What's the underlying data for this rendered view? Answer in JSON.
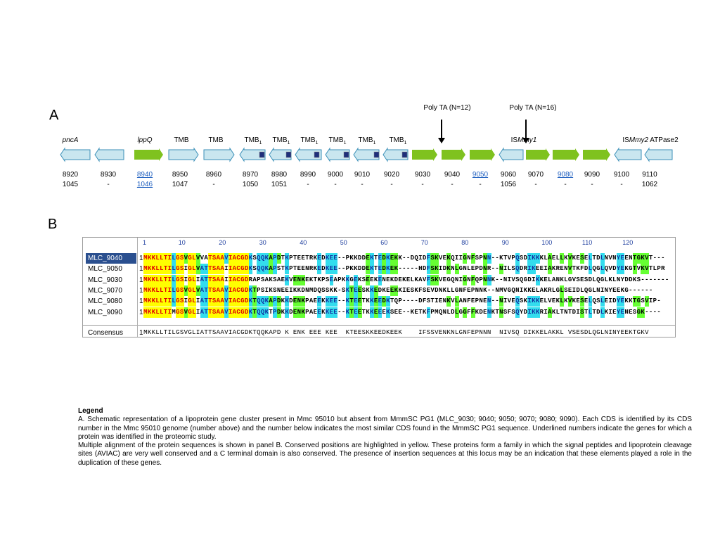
{
  "panels": {
    "a": "A",
    "b": "B"
  },
  "poly_labels": [
    "Poly TA (N=12)",
    "Poly TA (N=16)"
  ],
  "gene_labels": [
    {
      "pre": "",
      "it": "pncA",
      "post": ""
    },
    {
      "pre": "",
      "it": "lppQ",
      "post": ""
    },
    {
      "pre": "TMB",
      "it": "",
      "post": ""
    },
    {
      "pre": "TMB",
      "it": "",
      "post": ""
    },
    {
      "pre": "TMB",
      "sub": "1"
    },
    {
      "pre": "TMB",
      "sub": "1"
    },
    {
      "pre": "TMB",
      "sub": "1"
    },
    {
      "pre": "TMB",
      "sub": "1"
    },
    {
      "pre": "TMB",
      "sub": "1"
    },
    {
      "pre": "TMB",
      "sub": "1"
    },
    {
      "pre": "IS",
      "it": "Mmy1",
      "post": ""
    },
    {
      "pre": "IS",
      "it": "Mmy2",
      "post": " ATPase2"
    }
  ],
  "colors": {
    "blue_gene": "#c9e6ef",
    "blue_border": "#3a8fb7",
    "green_gene": "#7fc21f",
    "marker": "#1f2f7a",
    "select": "#2a4f8f"
  },
  "cds_top": [
    "8920",
    "8930",
    "8940",
    "8950",
    "8960",
    "8970",
    "8980",
    "8990",
    "9000",
    "9010",
    "9020",
    "9030",
    "9040",
    "9050",
    "9060",
    "9070",
    "9080",
    "9090",
    "9100",
    "9110"
  ],
  "cds_bottom": [
    "1045",
    "-",
    "1046",
    "1047",
    "-",
    "1050",
    "1051",
    "-",
    "-",
    "-",
    "-",
    "-",
    "-",
    "-",
    "1056",
    "-",
    "-",
    "-",
    "-",
    "1062"
  ],
  "underlined_top": [
    "8940",
    "9050",
    "9080"
  ],
  "underlined_bottom": [
    "1046"
  ],
  "alignment": {
    "header_start": "1",
    "ruler": [
      "1",
      "10",
      "20",
      "30",
      "40",
      "50",
      "60",
      "70",
      "80",
      "90",
      "100",
      "110",
      "120"
    ],
    "rows": [
      {
        "name": "MLC_9040",
        "start": "1",
        "seq": "MKKLLTILGSVGLVVATSAAVIACGDKSQQKAPDTKPTEETRKEDKEE--PKKDDEKTEDKEKK--DQIDFSKVEKQIIGNFSPNN--KTVPQSDIKKKLAELLKVKESELTDLNVNYEENTGKVT---"
      },
      {
        "name": "MLC_9050",
        "start": "1",
        "seq": "MKKLLTILGSIGLVATTSAAIIACGDKSQQKAPSTKPTEENRKEDKEE--PKKDDEKTEDKEK-----HDFSKIDKNLGNLEPDNR--NILSQDRIKEEIAKRENVTKFDLQGLQVDYEKGTVKVTLPR"
      },
      {
        "name": "MLC_9030",
        "start": "1",
        "seq": "MKKLLTILGSIGLIATTSAAIIACGDRAPSAKSAEKVENKEKTKPSEAPKKGEKSEEKENEKDEKELKAVFSKVEGQNIGNFQPNNK--NIVSQGDIKKELANKLGVSESDLQGLKLNYDDKS-------"
      },
      {
        "name": "MLC_9070",
        "start": "1",
        "seq": "MKKLLTILGSVGLVATTSAAVIACGDKTPSIKSNEEIKKDNMDQSSKK-SKTEESKKEDKEEKKIESKFSEVDNKLLGNFEPNNK--NMVGQNIKKELAKRLGLSEIDLQGLNINYEEKG------"
      },
      {
        "name": "MLC_9080",
        "start": "1",
        "seq": "MKKLLTILGSIGLIATTSAAVIACGDKTQQKAPDKKDENKPAEEKKEE--KTEETKKEEDKTQP----DFSTIENKVLANFEPNEN--NIVEQSKIKKELVEKLKVKESELQSLEIDYEKKTGSVIP-"
      },
      {
        "name": "MLC_9090",
        "start": "1",
        "seq": "MKKLLTIMGSVGLIATTSAAVIACGDKTQQKTPDKKDENKPAEEKKEE--KTEETKKEEEKSEE--KETKFPMQNLDLGGFFKDENKTNSFSQYDIKKRIAKLTNTDISTLTDLKIEYENESGK----"
      }
    ],
    "consensus_name": "Consensus",
    "consensus_start": "1",
    "consensus_seq": "MKKLLTILGSVGLIATTSAAVIACGDKTQQKAPD K ENK EEE KEE  KTEESKKEEDKEEK    IFSSVENKNLGNFEPNNN  NIVSQ DIKKELAKKL VSESDLQGLNINYEEKTGKV"
  },
  "legend": {
    "heading": "Legend",
    "p1": "A. Schematic representation of a lipoprotein gene cluster present in Mmc 95010 but absent from MmmSC PG1 (MLC_9030; 9040; 9050; 9070; 9080; 9090). Each CDS is identified by its CDS number in the Mmc 95010 genome (number above) and the number below indicates the most similar CDS found in the MmmSC PG1 sequence. Underlined numbers indicate the genes for which a protein was identified in the proteomic study.",
    "p2": "Multiple alignment of the protein sequences is shown in panel B. Conserved positions are highlighted in yellow. These proteins form a family in which the signal peptides and lipoprotein cleavage sites (AVIAC) are very well conserved and a C terminal domain is also conserved. The presence of insertion sequences at this locus may be an indication that these elements played a role in the duplication of these genes."
  }
}
